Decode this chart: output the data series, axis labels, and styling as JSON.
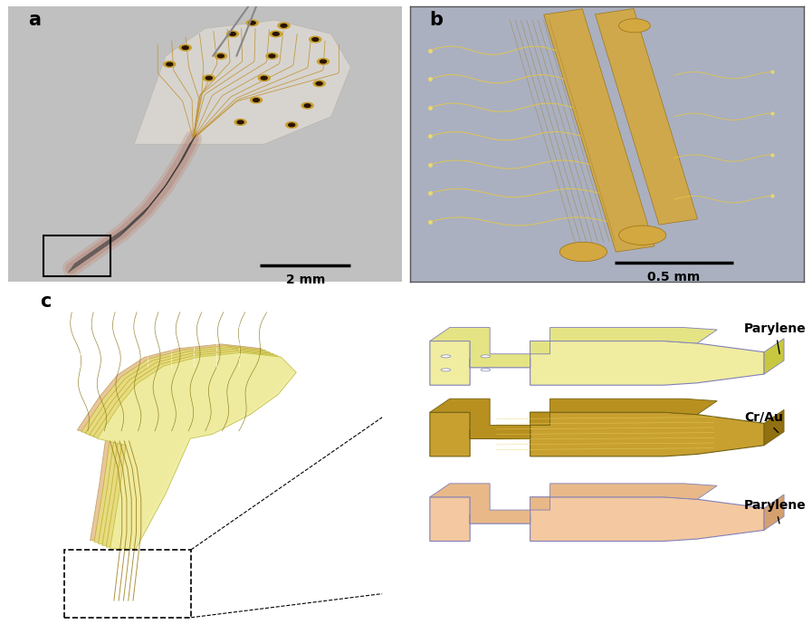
{
  "figure_bg": "#ffffff",
  "panel_a_bg": "#b8b8b8",
  "panel_b_bg": "#aab0c0",
  "label_a": "a",
  "label_b": "b",
  "label_c": "c",
  "scalebar_a_text": "2 mm",
  "scalebar_b_text": "0.5 mm",
  "annotation_parylene_top": "Parylene",
  "annotation_crau": "Cr/Au",
  "annotation_parylene_bot": "Parylene",
  "gold_color": "#C8A030",
  "gold_light": "#E0C060",
  "parylene_top_color": "#F0ECA0",
  "parylene_bot_color": "#F4C8A0",
  "crau_color": "#C8A030",
  "purple_edge": "#8080B8",
  "parylene_top_face": "#EEEB99",
  "parylene_top_side": "#D8D460",
  "crau_face": "#C8A030",
  "crau_side": "#9A7010",
  "parylene_bot_face": "#F4C8A0",
  "parylene_bot_side": "#D4A070"
}
